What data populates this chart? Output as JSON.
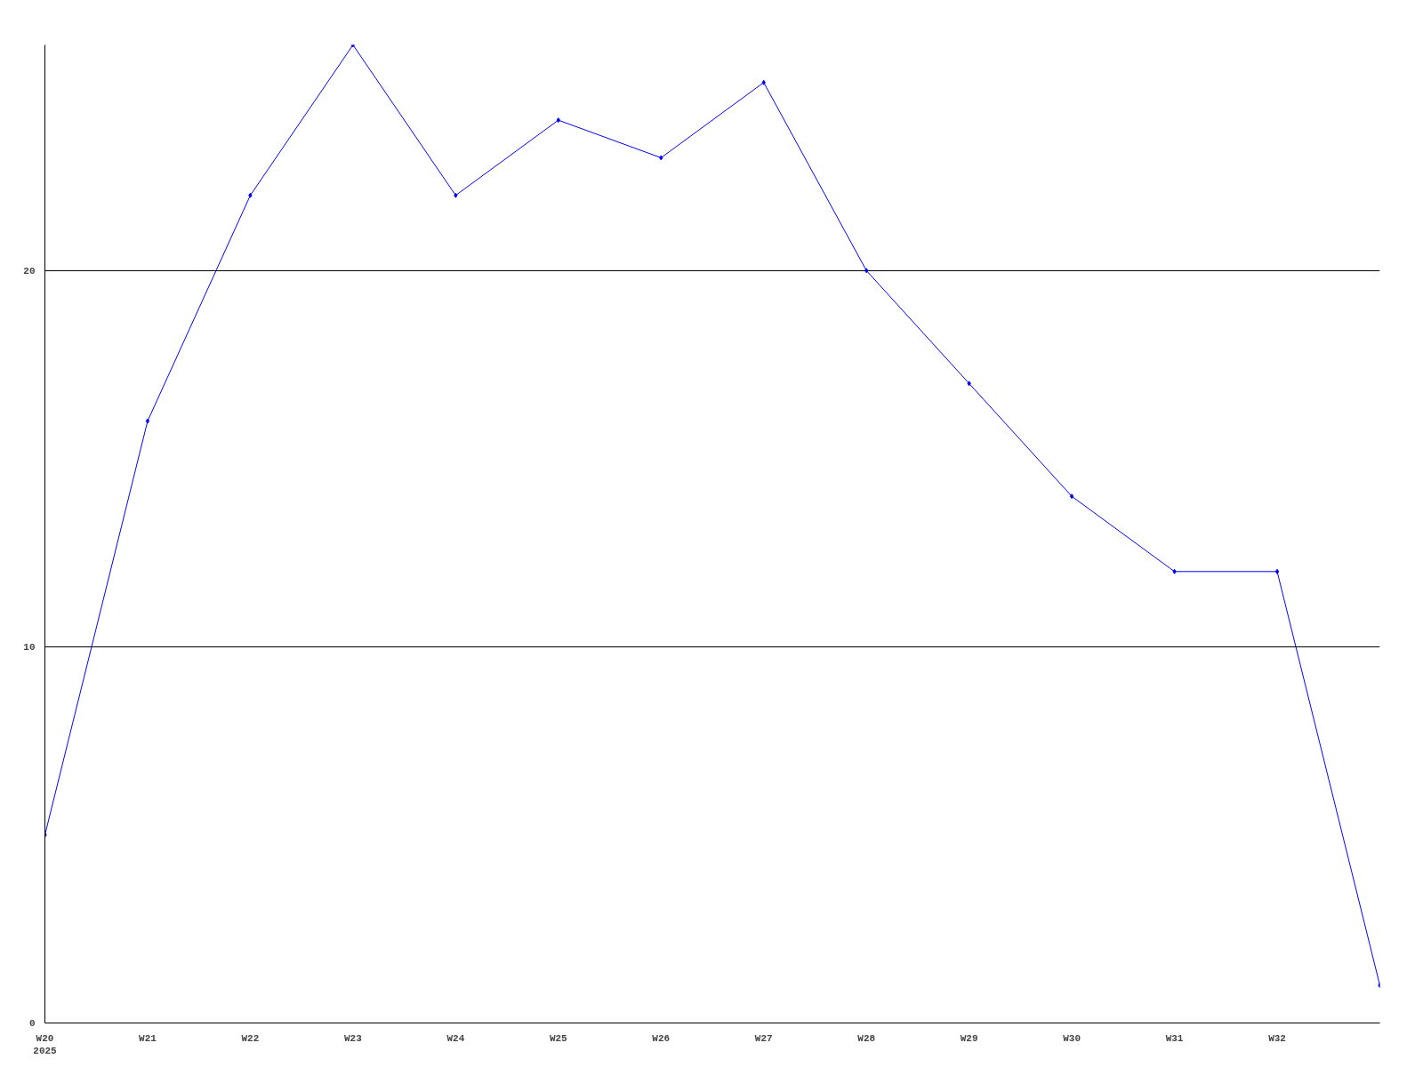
{
  "chart_data": {
    "type": "line",
    "categories": [
      "W20\n2025",
      "W21",
      "W22",
      "W23",
      "W24",
      "W25",
      "W26",
      "W27",
      "W28",
      "W29",
      "W30",
      "W31",
      "W32",
      null
    ],
    "series": [
      {
        "color": "#0000ff",
        "values": [
          5,
          16,
          22,
          26,
          22,
          24,
          23,
          25,
          20,
          17,
          14,
          12,
          12,
          1
        ]
      }
    ],
    "ylim": [
      0,
      26
    ],
    "yticks": [
      0,
      10,
      20
    ],
    "grid": "y",
    "marker": "diamond",
    "line_style": "solid"
  }
}
